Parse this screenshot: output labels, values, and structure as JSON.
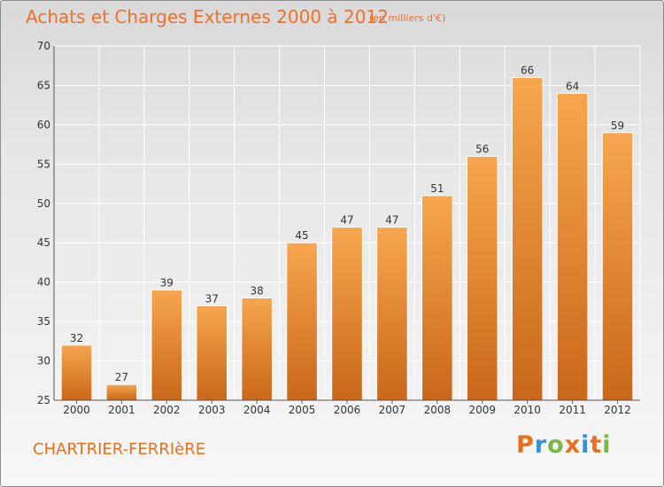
{
  "header": {
    "title": "Achats et Charges Externes 2000 à 2012",
    "subtitle": "(en milliers d'€)"
  },
  "footer": {
    "place": "CHARTRIER-FERRIèRE",
    "logo": "Proxiti",
    "logo_colors": [
      "#e8701f",
      "#3a8fd6",
      "#7ab648",
      "#e8701f",
      "#3a8fd6",
      "#e8701f",
      "#7ab648"
    ]
  },
  "chart_data": {
    "type": "bar",
    "categories": [
      "2000",
      "2001",
      "2002",
      "2003",
      "2004",
      "2005",
      "2006",
      "2007",
      "2008",
      "2009",
      "2010",
      "2011",
      "2012"
    ],
    "values": [
      32,
      27,
      39,
      37,
      38,
      45,
      47,
      47,
      51,
      56,
      66,
      64,
      59
    ],
    "title": "Achats et Charges Externes 2000 à 2012",
    "subtitle": "(en milliers d'€)",
    "ylim": [
      25,
      70
    ],
    "yticks": [
      25,
      30,
      35,
      40,
      45,
      50,
      55,
      60,
      65,
      70
    ],
    "grid": true,
    "bar_color_top": "#f7a64f",
    "bar_color_bottom": "#c9671a"
  }
}
